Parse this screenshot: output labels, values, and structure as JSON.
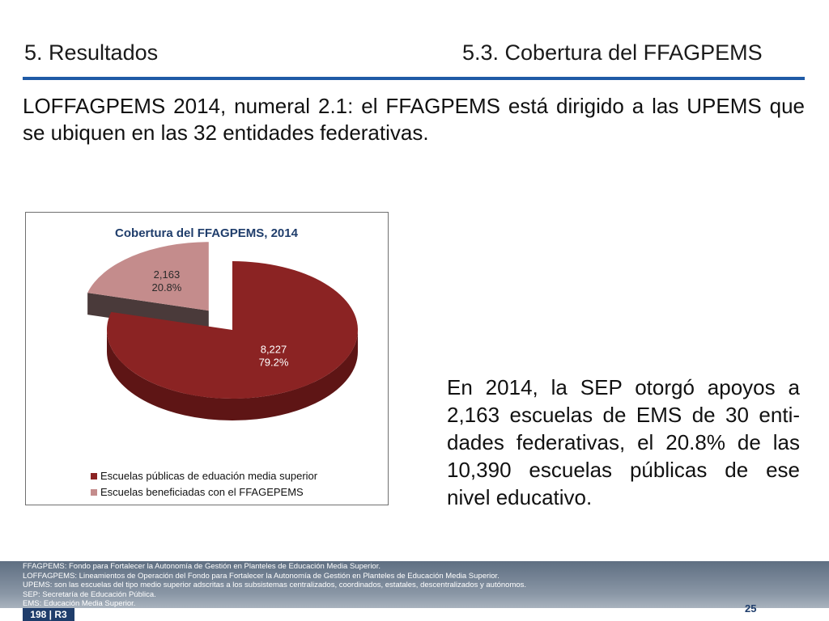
{
  "header": {
    "section": "5. Resultados",
    "subsection": "5.3.   Cobertura del FFAGPEMS"
  },
  "intro": "LOFFAGPEMS 2014, numeral 2.1: el FFAGPEMS está dirigido a las UPEMS que se ubiquen en las 32 entidades federativas.",
  "side_text": "En 2014, la SEP otorgó apoyos a 2,163 escuelas de EMS de 30 enti-dades federativas, el 20.8% de las 10,390 escuelas públicas de ese nivel educativo.",
  "chart_data": {
    "type": "pie",
    "title": "Cobertura del FFAGPEMS, 2014",
    "legend_position": "bottom",
    "slices": [
      {
        "name": "Escuelas públicas de eduación media superior",
        "value": 8227,
        "value_label": "8,227",
        "percent_label": "79.2%",
        "color": "#8b2323",
        "side_color": "#5e1515",
        "exploded": false
      },
      {
        "name": "Escuelas beneficiadas con el FFAGEPEMS",
        "value": 2163,
        "value_label": "2,163",
        "percent_label": "20.8%",
        "color": "#c48c8c",
        "side_color": "#4a3a3a",
        "exploded": true
      }
    ]
  },
  "footer": {
    "notes": [
      "FFAGPEMS: Fondo para Fortalecer la Autonomía de Gestión en Planteles de Educación Media Superior.",
      "LOFFAGPEMS: Lineamientos de Operación del Fondo para Fortalecer la Autonomía de Gestión en Planteles de Educación Media Superior.",
      "UPEMS: son las escuelas del tipo medio superior adscritas a los subsistemas centralizados, coordinados, estatales, descentralizados y autónomos.",
      "SEP: Secretaría de Educación Pública.",
      "EMS: Educación Media Superior."
    ],
    "page_number": "25",
    "doc_code": "198 | R3"
  }
}
